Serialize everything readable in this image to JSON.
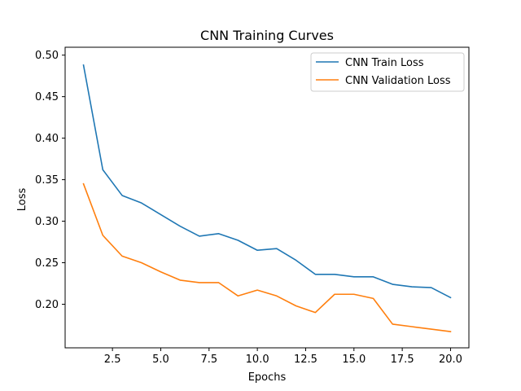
{
  "chart_data": {
    "type": "line",
    "title": "CNN Training Curves",
    "xlabel": "Epochs",
    "ylabel": "Loss",
    "xlim": [
      0.05,
      20.95
    ],
    "ylim": [
      0.1475,
      0.5095
    ],
    "x_ticks": [
      2.5,
      5.0,
      7.5,
      10.0,
      12.5,
      15.0,
      17.5,
      20.0
    ],
    "x_tick_labels": [
      "2.5",
      "5.0",
      "7.5",
      "10.0",
      "12.5",
      "15.0",
      "17.5",
      "20.0"
    ],
    "y_ticks": [
      0.2,
      0.25,
      0.3,
      0.35,
      0.4,
      0.45,
      0.5
    ],
    "y_tick_labels": [
      "0.20",
      "0.25",
      "0.30",
      "0.35",
      "0.40",
      "0.45",
      "0.50"
    ],
    "grid": false,
    "legend_position": "top-right",
    "x": [
      1,
      2,
      3,
      4,
      5,
      6,
      7,
      8,
      9,
      10,
      11,
      12,
      13,
      14,
      15,
      16,
      17,
      18,
      19,
      20
    ],
    "series": [
      {
        "name": "CNN Train Loss",
        "color": "#1f77b4",
        "values": [
          0.488,
          0.362,
          0.331,
          0.322,
          0.308,
          0.294,
          0.282,
          0.285,
          0.277,
          0.265,
          0.267,
          0.253,
          0.236,
          0.236,
          0.233,
          0.233,
          0.224,
          0.221,
          0.22,
          0.208
        ]
      },
      {
        "name": "CNN Validation Loss",
        "color": "#ff7f0e",
        "values": [
          0.345,
          0.283,
          0.258,
          0.25,
          0.239,
          0.229,
          0.226,
          0.226,
          0.21,
          0.217,
          0.21,
          0.198,
          0.19,
          0.212,
          0.212,
          0.207,
          0.176,
          0.173,
          0.17,
          0.167
        ]
      }
    ]
  }
}
